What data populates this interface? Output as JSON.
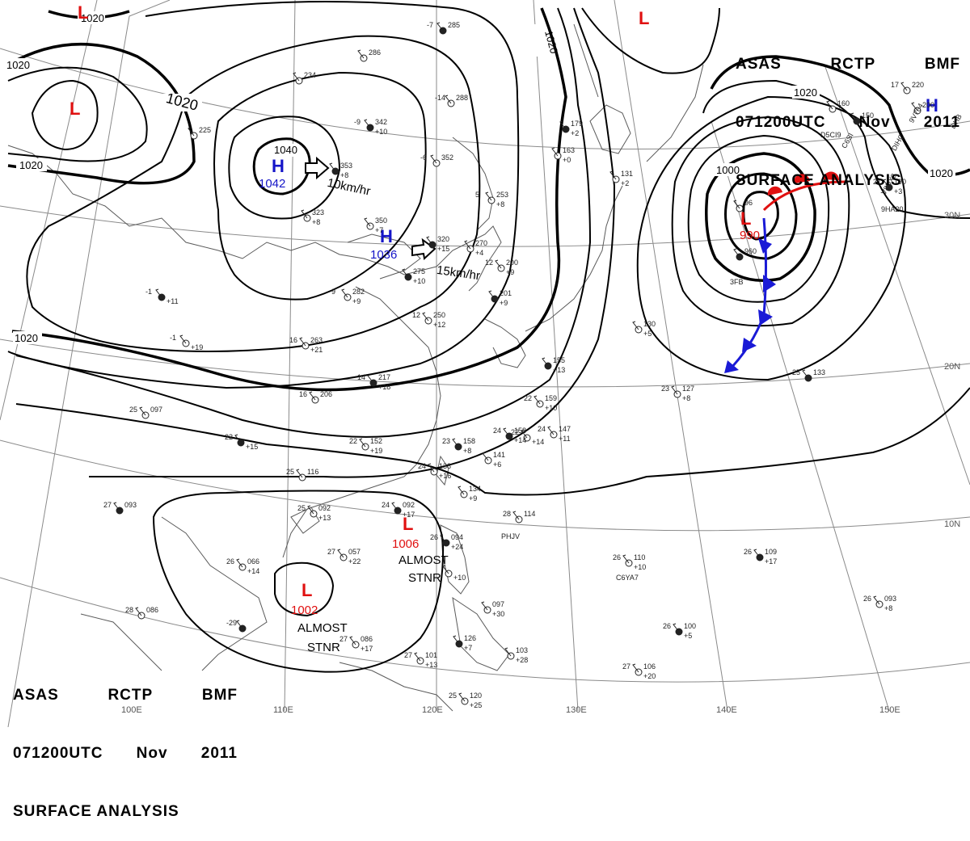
{
  "title": {
    "agency": "ASAS",
    "station": "RCTP",
    "source": "BMF",
    "datetime": "071200UTC",
    "month": "Nov",
    "year": "2011",
    "product": "SURFACE ANALYSIS"
  },
  "colors": {
    "isobar": "#000000",
    "grid": "#8a8a8a",
    "coast": "#5a5a5a",
    "high": "#1515c8",
    "low": "#e01010",
    "warm_front": "#e01010",
    "cold_front": "#1a1ad6",
    "station": "#222222"
  },
  "latitude_labels": [
    "30N",
    "20N",
    "10N"
  ],
  "longitude_labels": [
    "100E",
    "110E",
    "120E",
    "130E",
    "140E",
    "150E"
  ],
  "isobar_labels": [
    "1020",
    "1020",
    "1020",
    "1020",
    "1020",
    "1020",
    "1040",
    "1000"
  ],
  "pressure_centers": [
    {
      "type": "L",
      "value": ""
    },
    {
      "type": "L",
      "value": ""
    },
    {
      "type": "L",
      "value": ""
    },
    {
      "type": "H",
      "value": "1042"
    },
    {
      "type": "H",
      "value": "1036"
    },
    {
      "type": "H",
      "value": ""
    },
    {
      "type": "L",
      "value": "990"
    },
    {
      "type": "L",
      "value": "1006"
    },
    {
      "type": "L",
      "value": "1002"
    }
  ],
  "movement_labels": [
    "10km/hr",
    "15km/hr"
  ],
  "stationary_notes": [
    {
      "line1": "ALMOST",
      "line2": "STNR"
    },
    {
      "line1": "ALMOST",
      "line2": "STNR"
    }
  ],
  "station_plots": [
    {
      "temp": "-7",
      "pressure": "285",
      "tendency": ""
    },
    {
      "temp": "",
      "pressure": "286",
      "tendency": ""
    },
    {
      "temp": "",
      "pressure": "234",
      "tendency": ""
    },
    {
      "temp": "-9",
      "pressure": "342",
      "tendency": "+10"
    },
    {
      "temp": "-14",
      "pressure": "288",
      "tendency": ""
    },
    {
      "temp": "-6",
      "pressure": "352",
      "tendency": ""
    },
    {
      "temp": "",
      "pressure": "353",
      "tendency": "+8"
    },
    {
      "temp": "",
      "pressure": "323",
      "tendency": "+8"
    },
    {
      "temp": "",
      "pressure": "350",
      "tendency": "+7"
    },
    {
      "temp": "",
      "pressure": "320",
      "tendency": "+15"
    },
    {
      "temp": "5",
      "pressure": "253",
      "tendency": "+8"
    },
    {
      "temp": "",
      "pressure": "270",
      "tendency": "+4"
    },
    {
      "temp": "",
      "pressure": "275",
      "tendency": "+10"
    },
    {
      "temp": "9",
      "pressure": "282",
      "tendency": "+9"
    },
    {
      "temp": "12",
      "pressure": "200",
      "tendency": "+9"
    },
    {
      "temp": "",
      "pressure": "201",
      "tendency": "+9"
    },
    {
      "temp": "12",
      "pressure": "250",
      "tendency": "+12"
    },
    {
      "temp": "",
      "pressure": "163",
      "tendency": "+0"
    },
    {
      "temp": "",
      "pressure": "179",
      "tendency": "+2"
    },
    {
      "temp": "",
      "pressure": "131",
      "tendency": "+2"
    },
    {
      "temp": "",
      "pressure": "225",
      "tendency": ""
    },
    {
      "temp": "-1",
      "pressure": "",
      "tendency": "+11"
    },
    {
      "temp": "-1",
      "pressure": "",
      "tendency": "+19"
    },
    {
      "temp": "16",
      "pressure": "263",
      "tendency": "+21"
    },
    {
      "temp": "14",
      "pressure": "217",
      "tendency": "+18"
    },
    {
      "temp": "16",
      "pressure": "206",
      "tendency": ""
    },
    {
      "temp": "25",
      "pressure": "097",
      "tendency": ""
    },
    {
      "temp": "22",
      "pressure": "",
      "tendency": "+15"
    },
    {
      "temp": "22",
      "pressure": "152",
      "tendency": "+19"
    },
    {
      "temp": "22",
      "pressure": "",
      "tendency": "+14"
    },
    {
      "temp": "23",
      "pressure": "158",
      "tendency": "+8"
    },
    {
      "temp": "24",
      "pressure": "138",
      "tendency": "+16"
    },
    {
      "temp": "",
      "pressure": "141",
      "tendency": "+6"
    },
    {
      "temp": "24",
      "pressure": "158",
      "tendency": "+14"
    },
    {
      "temp": "24",
      "pressure": "147",
      "tendency": "+11"
    },
    {
      "temp": "22",
      "pressure": "159",
      "tendency": "+10"
    },
    {
      "temp": "",
      "pressure": "155",
      "tendency": "+13"
    },
    {
      "temp": "",
      "pressure": "130",
      "tendency": "+5"
    },
    {
      "temp": "23",
      "pressure": "127",
      "tendency": "+8"
    },
    {
      "temp": "25",
      "pressure": "133",
      "tendency": ""
    },
    {
      "temp": "25",
      "pressure": "116",
      "tendency": ""
    },
    {
      "temp": "25",
      "pressure": "092",
      "tendency": "+13"
    },
    {
      "temp": "24",
      "pressure": "092",
      "tendency": "+17"
    },
    {
      "temp": "",
      "pressure": "134",
      "tendency": "+9"
    },
    {
      "temp": "28",
      "pressure": "114",
      "tendency": ""
    },
    {
      "temp": "27",
      "pressure": "093",
      "tendency": ""
    },
    {
      "temp": "26",
      "pressure": "066",
      "tendency": "+14"
    },
    {
      "temp": "27",
      "pressure": "057",
      "tendency": "+22"
    },
    {
      "temp": "26",
      "pressure": "094",
      "tendency": "+24"
    },
    {
      "temp": "",
      "pressure": "",
      "tendency": "+10"
    },
    {
      "temp": "26",
      "pressure": "110",
      "tendency": "+10"
    },
    {
      "temp": "26",
      "pressure": "109",
      "tendency": "+17"
    },
    {
      "temp": "26",
      "pressure": "093",
      "tendency": "+8"
    },
    {
      "temp": "",
      "pressure": "097",
      "tendency": "+30"
    },
    {
      "temp": "26",
      "pressure": "100",
      "tendency": "+5"
    },
    {
      "temp": "27",
      "pressure": "106",
      "tendency": "+20"
    },
    {
      "temp": "28",
      "pressure": "086",
      "tendency": ""
    },
    {
      "temp": "-29",
      "pressure": "",
      "tendency": ""
    },
    {
      "temp": "27",
      "pressure": "086",
      "tendency": "+17"
    },
    {
      "temp": "27",
      "pressure": "101",
      "tendency": "+13"
    },
    {
      "temp": "",
      "pressure": "126",
      "tendency": "+7"
    },
    {
      "temp": "",
      "pressure": "103",
      "tendency": "+28"
    },
    {
      "temp": "25",
      "pressure": "120",
      "tendency": "+25"
    },
    {
      "temp": "21",
      "pressure": "190",
      "tendency": "+3"
    },
    {
      "temp": "",
      "pressure": "200",
      "tendency": ""
    },
    {
      "temp": "17",
      "pressure": "220",
      "tendency": ""
    },
    {
      "temp": "",
      "pressure": "150",
      "tendency": ""
    },
    {
      "temp": "",
      "pressure": "160",
      "tendency": ""
    },
    {
      "temp": "",
      "pressure": "96",
      "tendency": ""
    },
    {
      "temp": "",
      "pressure": "960",
      "tendency": ""
    }
  ],
  "call_signs": [
    "PHJV",
    "C6YA7",
    "3FB",
    "DHB",
    "DIHC",
    "9V764",
    "V8DX2",
    "9HA20",
    "C6SI",
    "D5CI9"
  ]
}
